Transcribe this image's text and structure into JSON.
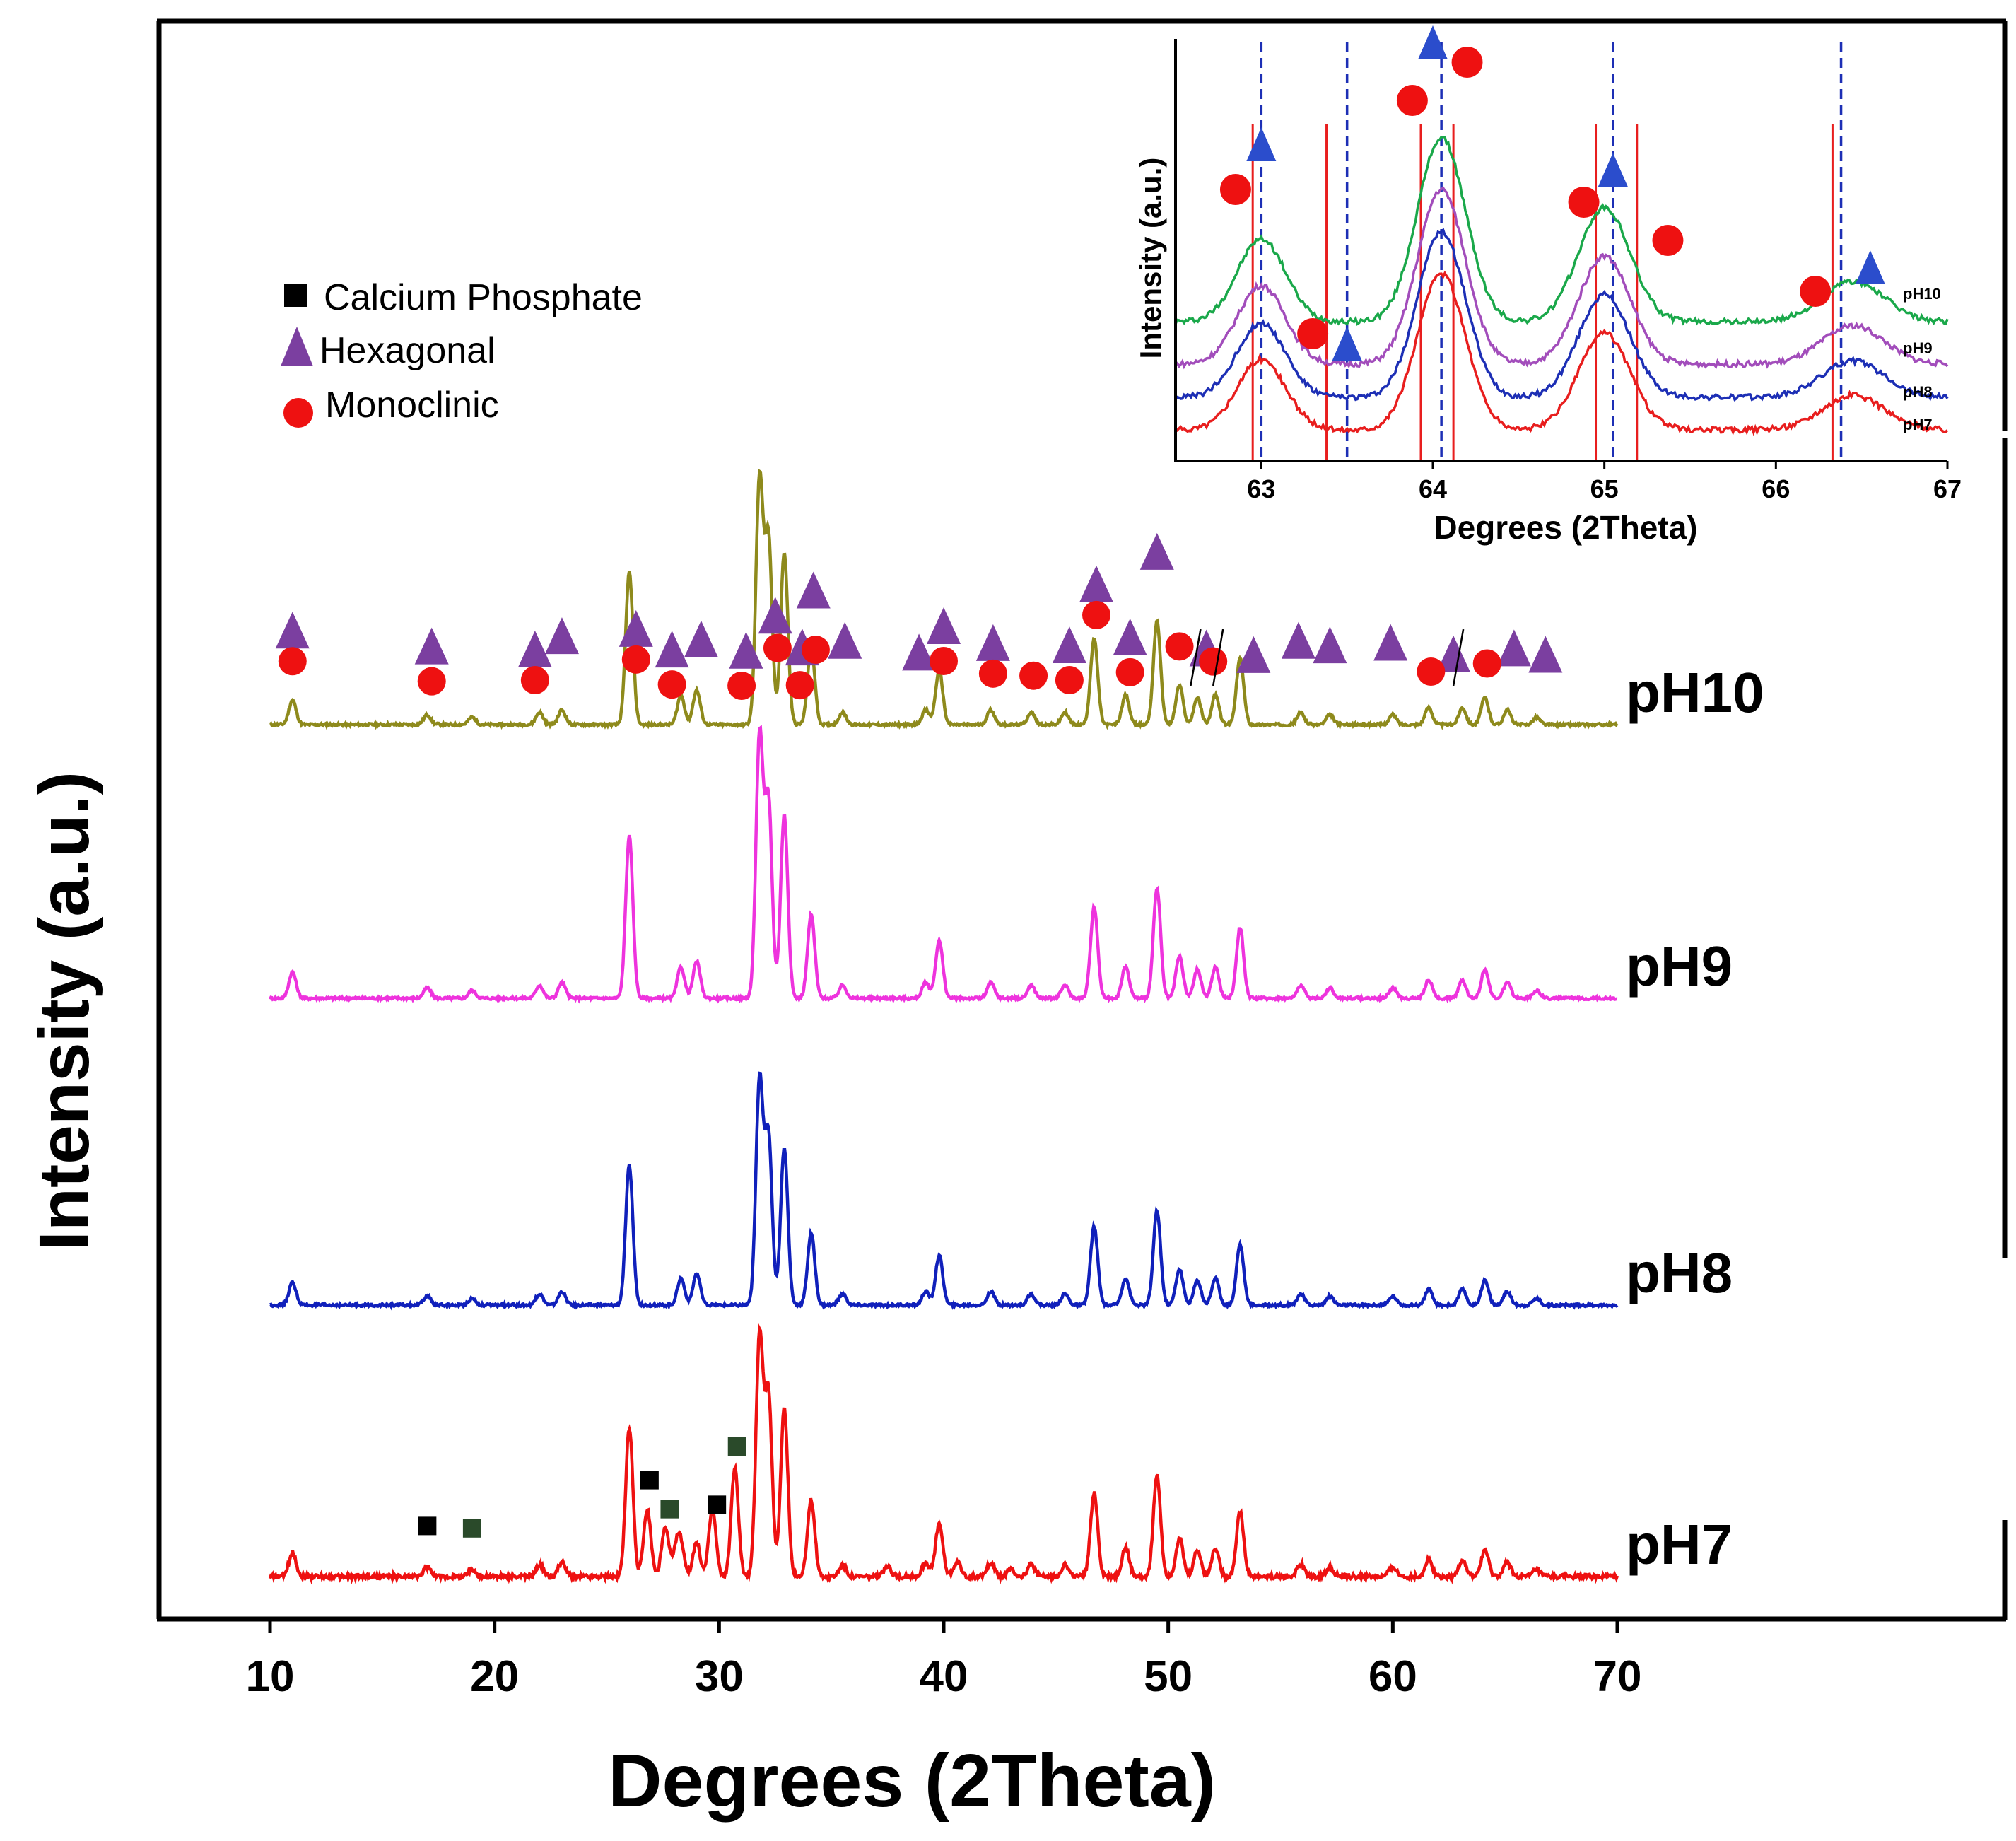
{
  "chart_data": [
    {
      "type": "line",
      "title": "",
      "xlabel": "Degrees (2Theta)",
      "ylabel": "Intensity (a.u.)",
      "xlim": [
        10,
        70
      ],
      "xticks": [
        "10",
        "20",
        "30",
        "40",
        "50",
        "60",
        "70"
      ],
      "grid": false,
      "stacked_offset": true,
      "legend": {
        "placement": "top-left",
        "entries": [
          {
            "label": "Calcium Phosphate",
            "marker": "square",
            "color": "#000000"
          },
          {
            "label": "Hexagonal",
            "marker": "triangle",
            "color": "#7b3fa0"
          },
          {
            "label": "Monoclinic",
            "marker": "circle",
            "color": "#ee1111"
          }
        ]
      },
      "peaks": [
        {
          "x": 11.0,
          "h": 0.1
        },
        {
          "x": 17.0,
          "h": 0.04
        },
        {
          "x": 19.0,
          "h": 0.03
        },
        {
          "x": 22.0,
          "h": 0.05
        },
        {
          "x": 23.0,
          "h": 0.06
        },
        {
          "x": 26.0,
          "h": 0.62
        },
        {
          "x": 28.3,
          "h": 0.12
        },
        {
          "x": 29.0,
          "h": 0.14
        },
        {
          "x": 31.8,
          "h": 1.0
        },
        {
          "x": 32.2,
          "h": 0.75
        },
        {
          "x": 32.9,
          "h": 0.7
        },
        {
          "x": 34.1,
          "h": 0.32
        },
        {
          "x": 35.5,
          "h": 0.05
        },
        {
          "x": 39.2,
          "h": 0.06
        },
        {
          "x": 39.8,
          "h": 0.22
        },
        {
          "x": 42.1,
          "h": 0.06
        },
        {
          "x": 43.9,
          "h": 0.05
        },
        {
          "x": 45.4,
          "h": 0.05
        },
        {
          "x": 46.7,
          "h": 0.35
        },
        {
          "x": 48.1,
          "h": 0.12
        },
        {
          "x": 49.5,
          "h": 0.42
        },
        {
          "x": 50.5,
          "h": 0.16
        },
        {
          "x": 51.3,
          "h": 0.11
        },
        {
          "x": 52.1,
          "h": 0.12
        },
        {
          "x": 53.2,
          "h": 0.27
        },
        {
          "x": 55.9,
          "h": 0.05
        },
        {
          "x": 57.2,
          "h": 0.04
        },
        {
          "x": 60.0,
          "h": 0.04
        },
        {
          "x": 61.6,
          "h": 0.07
        },
        {
          "x": 63.1,
          "h": 0.07
        },
        {
          "x": 64.1,
          "h": 0.11
        },
        {
          "x": 65.1,
          "h": 0.06
        },
        {
          "x": 66.4,
          "h": 0.03
        }
      ],
      "ph7_extra_peaks": [
        {
          "x": 26.8,
          "h": 0.28
        },
        {
          "x": 27.6,
          "h": 0.2
        },
        {
          "x": 28.1,
          "h": 0.1
        },
        {
          "x": 29.7,
          "h": 0.28
        },
        {
          "x": 30.7,
          "h": 0.45
        },
        {
          "x": 37.5,
          "h": 0.04
        },
        {
          "x": 40.6,
          "h": 0.06
        },
        {
          "x": 43.0,
          "h": 0.03
        }
      ],
      "series": [
        {
          "name": "pH10",
          "color": "#8e8a1c",
          "amplitude": 0.94
        },
        {
          "name": "pH9",
          "color": "#ee33dd",
          "amplitude": 1.0
        },
        {
          "name": "pH8",
          "color": "#1020bb",
          "amplitude": 0.86
        },
        {
          "name": "pH7",
          "color": "#ee1111",
          "amplitude": 0.92
        }
      ],
      "annotations": {
        "hexagonal_x": [
          11.0,
          17.2,
          21.8,
          23.0,
          26.3,
          27.9,
          29.2,
          31.2,
          32.5,
          33.7,
          34.2,
          35.6,
          38.9,
          40.0,
          42.2,
          45.6,
          46.8,
          48.3,
          49.5,
          51.7,
          53.8,
          55.8,
          57.2,
          59.9,
          62.7,
          65.4,
          66.8
        ],
        "monoclinic_x": [
          11.0,
          17.2,
          21.8,
          26.3,
          27.9,
          31.0,
          32.6,
          33.6,
          34.3,
          40.0,
          42.2,
          44.0,
          45.6,
          46.8,
          48.3,
          50.5,
          52.0,
          61.7,
          64.2
        ],
        "calcium_phosphate_x": [
          17.0,
          19.0,
          26.9,
          27.8,
          29.9,
          30.8
        ]
      }
    },
    {
      "type": "line",
      "title": "",
      "inset": true,
      "xlabel": "Degrees (2Theta)",
      "ylabel": "Intensity (a.u.)",
      "xlim": [
        62.5,
        67.0
      ],
      "xticks": [
        "63",
        "64",
        "65",
        "66",
        "67"
      ],
      "grid": false,
      "peaks": [
        {
          "x": 63.0,
          "h": 0.45,
          "w": 0.14
        },
        {
          "x": 64.05,
          "h": 1.0,
          "w": 0.14
        },
        {
          "x": 65.0,
          "h": 0.62,
          "w": 0.15
        },
        {
          "x": 66.45,
          "h": 0.22,
          "w": 0.18
        }
      ],
      "series": [
        {
          "name": "pH10",
          "color": "#1aa84a",
          "amplitude": 1.0
        },
        {
          "name": "pH9",
          "color": "#a24dbb",
          "amplitude": 0.95
        },
        {
          "name": "pH8",
          "color": "#1d2fb5",
          "amplitude": 0.9
        },
        {
          "name": "pH7",
          "color": "#e81e1e",
          "amplitude": 0.85
        }
      ],
      "reference_lines": {
        "monoclinic_solid_red": [
          62.95,
          63.38,
          63.93,
          64.12,
          64.95,
          65.19,
          66.33
        ],
        "hexagonal_dashed_blue": [
          63.0,
          63.5,
          64.05,
          65.05,
          66.38
        ]
      },
      "markers": {
        "hexagonal": [
          {
            "x": 63.0,
            "y": 0.74
          },
          {
            "x": 63.5,
            "y": 0.27
          },
          {
            "x": 64.0,
            "y": 0.98
          },
          {
            "x": 65.05,
            "y": 0.68
          },
          {
            "x": 66.55,
            "y": 0.45
          }
        ],
        "monoclinic": [
          {
            "x": 62.85,
            "y": 0.64
          },
          {
            "x": 63.3,
            "y": 0.3
          },
          {
            "x": 63.88,
            "y": 0.85
          },
          {
            "x": 64.2,
            "y": 0.94
          },
          {
            "x": 64.88,
            "y": 0.61
          },
          {
            "x": 65.37,
            "y": 0.52
          },
          {
            "x": 66.23,
            "y": 0.4
          }
        ]
      }
    }
  ]
}
